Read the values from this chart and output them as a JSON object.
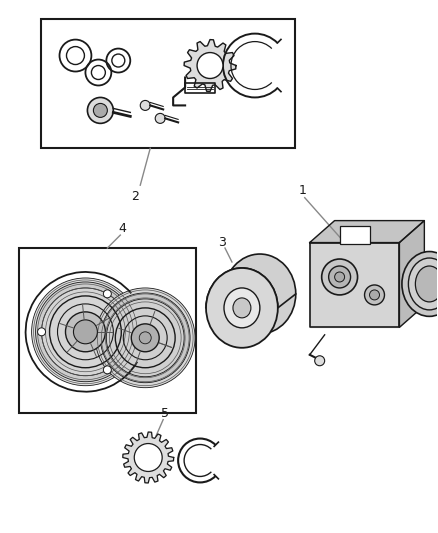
{
  "bg_color": "#ffffff",
  "line_color": "#1a1a1a",
  "gray_color": "#888888",
  "dark_gray": "#555555",
  "mid_gray": "#aaaaaa",
  "light_gray": "#dddddd",
  "figsize": [
    4.38,
    5.33
  ],
  "dpi": 100
}
